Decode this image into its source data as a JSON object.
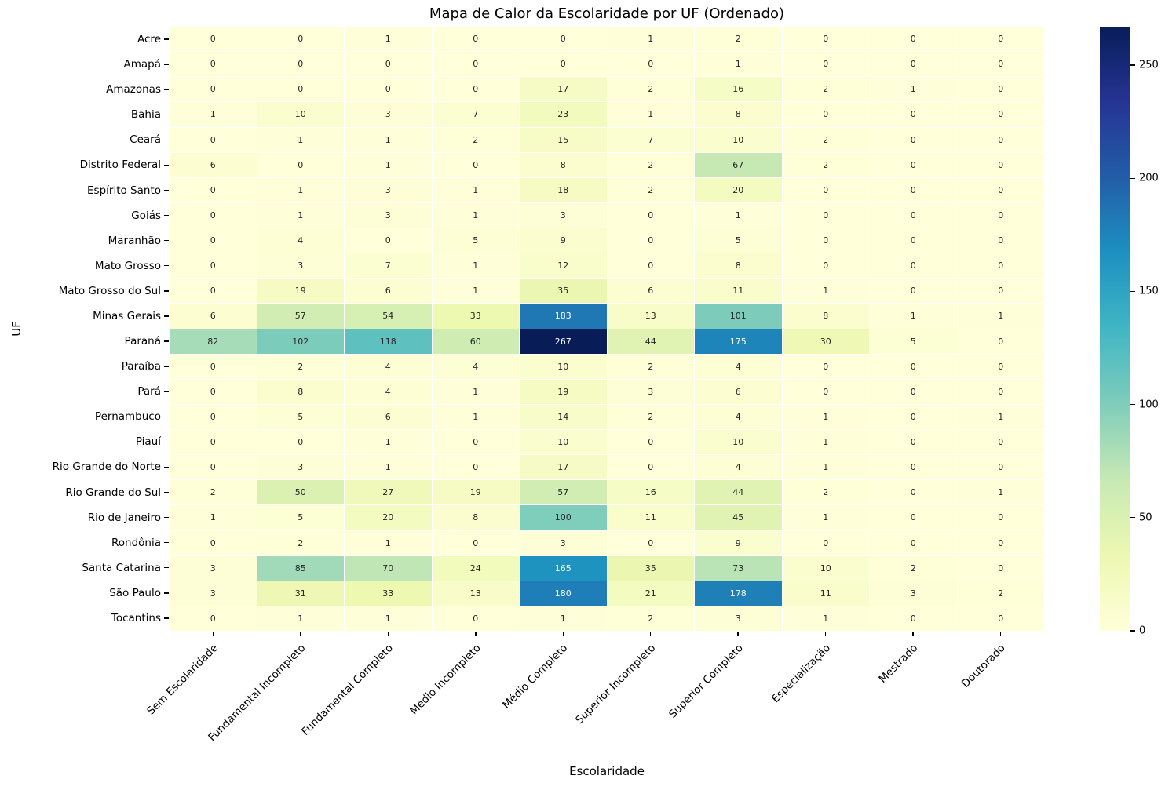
{
  "chart_data": {
    "type": "heatmap",
    "title": "Mapa de Calor da Escolaridade por UF (Ordenado)",
    "xlabel": "Escolaridade",
    "ylabel": "UF",
    "columns": [
      "Sem Escolaridade",
      "Fundamental Incompleto",
      "Fundamental Completo",
      "Médio Incompleto",
      "Médio Completo",
      "Superior Incompleto",
      "Superior Completo",
      "Especialização",
      "Mestrado",
      "Doutorado"
    ],
    "rows": [
      "Acre",
      "Amapá",
      "Amazonas",
      "Bahia",
      "Ceará",
      "Distrito Federal",
      "Espírito Santo",
      "Goiás",
      "Maranhão",
      "Mato Grosso",
      "Mato Grosso do Sul",
      "Minas Gerais",
      "Paraná",
      "Paraíba",
      "Pará",
      "Pernambuco",
      "Piauí",
      "Rio Grande do Norte",
      "Rio Grande do Sul",
      "Rio de Janeiro",
      "Rondônia",
      "Santa Catarina",
      "São Paulo",
      "Tocantins"
    ],
    "values": [
      [
        0,
        0,
        1,
        0,
        0,
        1,
        2,
        0,
        0,
        0
      ],
      [
        0,
        0,
        0,
        0,
        0,
        0,
        1,
        0,
        0,
        0
      ],
      [
        0,
        0,
        0,
        0,
        17,
        2,
        16,
        2,
        1,
        0
      ],
      [
        1,
        10,
        3,
        7,
        23,
        1,
        8,
        0,
        0,
        0
      ],
      [
        0,
        1,
        1,
        2,
        15,
        7,
        10,
        2,
        0,
        0
      ],
      [
        6,
        0,
        1,
        0,
        8,
        2,
        67,
        2,
        0,
        0
      ],
      [
        0,
        1,
        3,
        1,
        18,
        2,
        20,
        0,
        0,
        0
      ],
      [
        0,
        1,
        3,
        1,
        3,
        0,
        1,
        0,
        0,
        0
      ],
      [
        0,
        4,
        0,
        5,
        9,
        0,
        5,
        0,
        0,
        0
      ],
      [
        0,
        3,
        7,
        1,
        12,
        0,
        8,
        0,
        0,
        0
      ],
      [
        0,
        19,
        6,
        1,
        35,
        6,
        11,
        1,
        0,
        0
      ],
      [
        6,
        57,
        54,
        33,
        183,
        13,
        101,
        8,
        1,
        1
      ],
      [
        82,
        102,
        118,
        60,
        267,
        44,
        175,
        30,
        5,
        0
      ],
      [
        0,
        2,
        4,
        4,
        10,
        2,
        4,
        0,
        0,
        0
      ],
      [
        0,
        8,
        4,
        1,
        19,
        3,
        6,
        0,
        0,
        0
      ],
      [
        0,
        5,
        6,
        1,
        14,
        2,
        4,
        1,
        0,
        1
      ],
      [
        0,
        0,
        1,
        0,
        10,
        0,
        10,
        1,
        0,
        0
      ],
      [
        0,
        3,
        1,
        0,
        17,
        0,
        4,
        1,
        0,
        0
      ],
      [
        2,
        50,
        27,
        19,
        57,
        16,
        44,
        2,
        0,
        1
      ],
      [
        1,
        5,
        20,
        8,
        100,
        11,
        45,
        1,
        0,
        0
      ],
      [
        0,
        2,
        1,
        0,
        3,
        0,
        9,
        0,
        0,
        0
      ],
      [
        3,
        85,
        70,
        24,
        165,
        35,
        73,
        10,
        2,
        0
      ],
      [
        3,
        31,
        33,
        13,
        180,
        21,
        178,
        11,
        3,
        2
      ],
      [
        0,
        1,
        1,
        0,
        1,
        2,
        3,
        1,
        0,
        0
      ]
    ],
    "vmin": 0,
    "vmax": 267,
    "colorbar_ticks": [
      0,
      50,
      100,
      150,
      200,
      250
    ],
    "colormap": {
      "name": "YlGnBu",
      "stops": [
        [
          0.0,
          "#ffffd9"
        ],
        [
          0.125,
          "#edf8b1"
        ],
        [
          0.25,
          "#c7e9b4"
        ],
        [
          0.375,
          "#7fcdbb"
        ],
        [
          0.5,
          "#41b6c4"
        ],
        [
          0.625,
          "#1d91c0"
        ],
        [
          0.75,
          "#225ea8"
        ],
        [
          0.875,
          "#253494"
        ],
        [
          1.0,
          "#081d58"
        ]
      ]
    },
    "annotation_text_colors": {
      "dark": "#262626",
      "light": "#ffffff"
    },
    "grid_on": true,
    "legend_position": "colorbar-right"
  }
}
